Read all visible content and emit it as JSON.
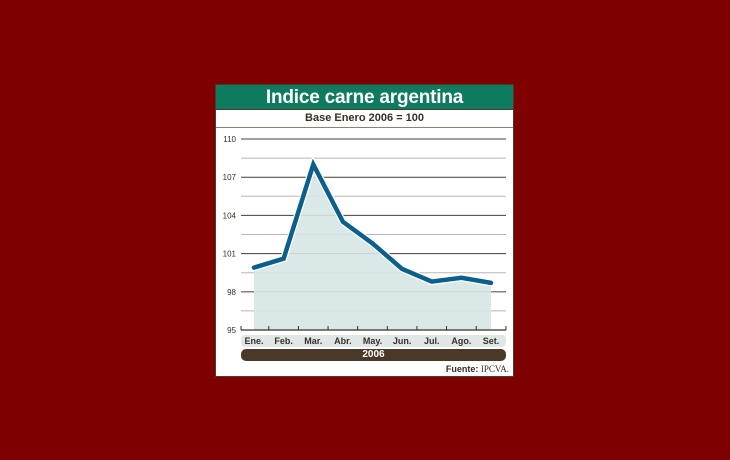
{
  "background_color": "#7f0000",
  "header": {
    "title": "Indice carne argentina",
    "color": "#0e7a5e"
  },
  "subtitle": "Base Enero 2006 = 100",
  "year_label": "2006",
  "source": {
    "label": "Fuente:",
    "name": "IPCVA."
  },
  "chart_data": {
    "type": "line",
    "title": "Indice carne argentina",
    "subtitle": "Base Enero 2006 = 100",
    "xlabel": "2006",
    "ylabel": "",
    "categories": [
      "Ene.",
      "Feb.",
      "Mar.",
      "Abr.",
      "May.",
      "Jun.",
      "Jul.",
      "Ago.",
      "Set."
    ],
    "series": [
      {
        "name": "Indice carne argentina",
        "values": [
          99.9,
          100.6,
          108.0,
          103.5,
          101.8,
          99.8,
          98.8,
          99.1,
          98.7
        ],
        "color": "#0a5f8c",
        "fill": "#d6e6e6"
      }
    ],
    "yticks": [
      95,
      98,
      101,
      104,
      107,
      110
    ],
    "ylim": [
      95,
      110
    ],
    "grid": true,
    "minor_grid": [
      96.5,
      99.5,
      102.5,
      105.5,
      108.5
    ],
    "legend": "none",
    "source": "Fuente: IPCVA."
  }
}
